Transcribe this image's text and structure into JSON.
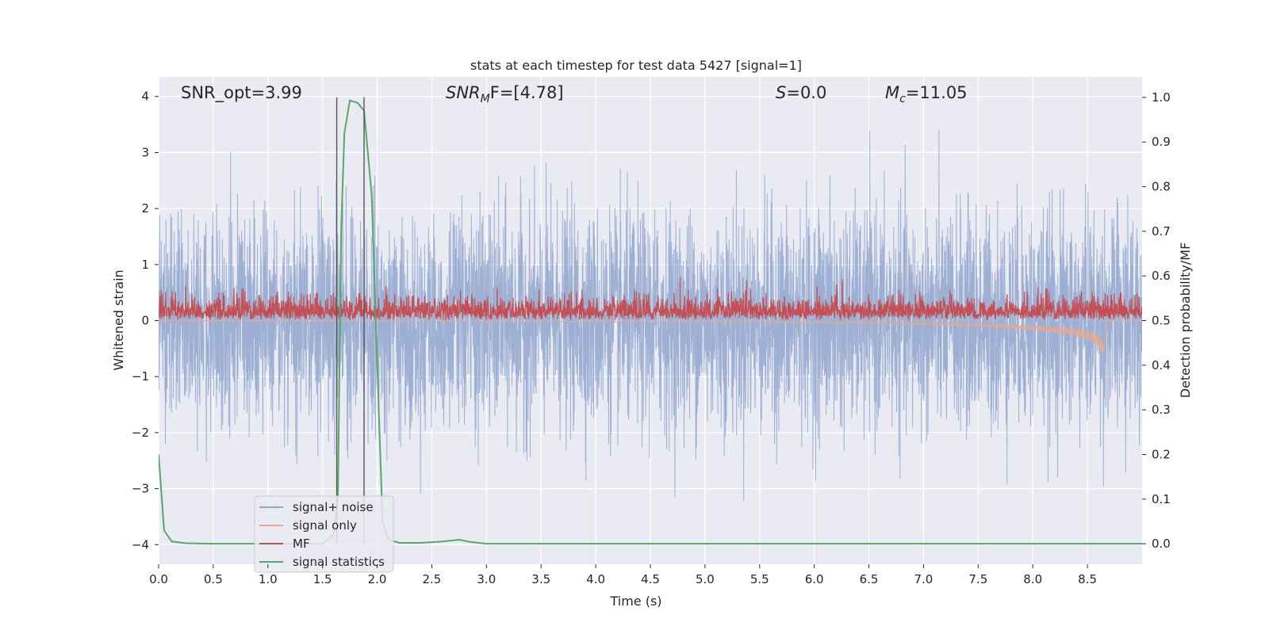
{
  "chart_data": {
    "type": "line",
    "title": "stats at each timestep for test data 5427 [signal=1]",
    "xlabel": "Time (s)",
    "ylabel_left": "Whitened strain",
    "ylabel_right": "Detection probability/MF",
    "xlim": [
      0.0,
      9.0
    ],
    "ylim_left": [
      -4.35,
      4.35
    ],
    "ylim_right": [
      -0.046,
      1.046
    ],
    "grid": true,
    "legend_position": "lower-left",
    "x_ticks": [
      0.0,
      0.5,
      1.0,
      1.5,
      2.0,
      2.5,
      3.0,
      3.5,
      4.0,
      4.5,
      5.0,
      5.5,
      6.0,
      6.5,
      7.0,
      7.5,
      8.0,
      8.5
    ],
    "x_tick_labels": [
      "0.0",
      "0.5",
      "1.0",
      "1.5",
      "2.0",
      "2.5",
      "3.0",
      "3.5",
      "4.0",
      "4.5",
      "5.0",
      "5.5",
      "6.0",
      "6.5",
      "7.0",
      "7.5",
      "8.0",
      "8.5"
    ],
    "y_ticks_left": [
      4,
      3,
      2,
      1,
      0,
      -1,
      -2,
      -3,
      -4
    ],
    "y_tick_labels_left": [
      "4",
      "3",
      "2",
      "1",
      "0",
      "−1",
      "−2",
      "−3",
      "−4"
    ],
    "y_ticks_right": [
      1.0,
      0.9,
      0.8,
      0.7,
      0.6,
      0.5,
      0.4,
      0.3,
      0.2,
      0.1,
      0.0
    ],
    "y_tick_labels_right": [
      "1.0",
      "0.9",
      "0.8",
      "0.7",
      "0.6",
      "0.5",
      "0.4",
      "0.3",
      "0.2",
      "0.1",
      "0.0"
    ],
    "annotations": {
      "snr_opt": "SNR_opt=3.99",
      "snr_mf_main": "SNR",
      "snr_mf_sub": "M",
      "snr_mf_rest": "F=[4.78]",
      "s_main": "S",
      "s_rest": "=0.0",
      "mc_main": "M",
      "mc_sub": "c",
      "mc_rest": "=11.05"
    },
    "vertical_markers_x": [
      1.63,
      1.88
    ],
    "series": [
      {
        "name": "signal+ noise",
        "color": "#8fa6cf",
        "axis": "left",
        "description_values": {
          "typical_range": [
            -2.3,
            2.3
          ],
          "peak_max": 4.0,
          "peak_min": -3.75
        }
      },
      {
        "name": "signal only",
        "color": "#e7a88f",
        "axis": "left",
        "points": [
          [
            0.0,
            0.0
          ],
          [
            2.0,
            -0.01
          ],
          [
            3.0,
            -0.015
          ],
          [
            4.0,
            -0.02
          ],
          [
            5.0,
            -0.03
          ],
          [
            6.0,
            -0.04
          ],
          [
            7.0,
            -0.07
          ],
          [
            7.5,
            -0.1
          ],
          [
            8.0,
            -0.16
          ],
          [
            8.3,
            -0.23
          ],
          [
            8.5,
            -0.32
          ],
          [
            8.6,
            -0.45
          ],
          [
            8.65,
            -0.65
          ],
          [
            8.67,
            0.0
          ],
          [
            9.0,
            0.0
          ]
        ]
      },
      {
        "name": "MF",
        "color": "#c44e52",
        "axis": "right",
        "description_values": {
          "typical_range": [
            0.5,
            0.56
          ],
          "peak_max": 0.6
        }
      },
      {
        "name": "signal statistics",
        "color": "#55a868",
        "axis": "right",
        "points": [
          [
            0.0,
            0.2
          ],
          [
            0.05,
            0.03
          ],
          [
            0.12,
            0.005
          ],
          [
            0.25,
            0.001
          ],
          [
            0.5,
            0.0
          ],
          [
            1.5,
            0.0
          ],
          [
            1.6,
            0.02
          ],
          [
            1.64,
            0.1
          ],
          [
            1.67,
            0.7
          ],
          [
            1.7,
            0.92
          ],
          [
            1.75,
            0.993
          ],
          [
            1.82,
            0.988
          ],
          [
            1.88,
            0.97
          ],
          [
            1.95,
            0.78
          ],
          [
            2.0,
            0.4
          ],
          [
            2.05,
            0.05
          ],
          [
            2.1,
            0.01
          ],
          [
            2.2,
            0.002
          ],
          [
            2.4,
            0.002
          ],
          [
            2.6,
            0.005
          ],
          [
            2.75,
            0.009
          ],
          [
            2.85,
            0.004
          ],
          [
            3.0,
            0.0
          ],
          [
            9.0,
            0.0
          ]
        ]
      }
    ]
  }
}
